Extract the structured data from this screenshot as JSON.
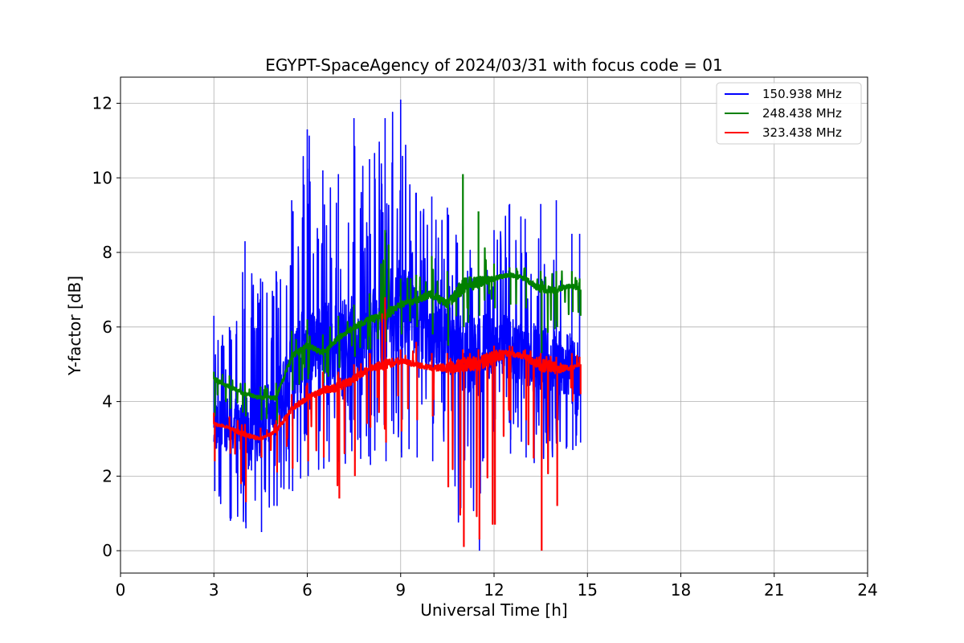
{
  "chart_data": {
    "type": "line",
    "title": "EGYPT-SpaceAgency of 2024/03/31 with focus code = 01",
    "xlabel": "Universal Time [h]",
    "ylabel": "Y-factor [dB]",
    "xlim": [
      0,
      24
    ],
    "ylim": [
      -0.6,
      12.7
    ],
    "xticks": [
      "0",
      "3",
      "6",
      "9",
      "12",
      "15",
      "18",
      "21",
      "24"
    ],
    "yticks": [
      "0",
      "2",
      "4",
      "6",
      "8",
      "10",
      "12"
    ],
    "grid": true,
    "legend_position": "top-right",
    "series": [
      {
        "name": "150.938 MHz",
        "color": "#0000ff",
        "x": [
          3.0,
          3.5,
          4.0,
          4.5,
          5.0,
          5.5,
          6.0,
          6.5,
          7.0,
          7.5,
          8.0,
          8.5,
          9.0,
          9.5,
          10.0,
          10.5,
          11.0,
          11.5,
          12.0,
          12.5,
          13.0,
          13.5,
          14.0,
          14.5,
          14.75
        ],
        "mid": [
          3.3,
          3.4,
          3.2,
          3.3,
          3.8,
          4.8,
          5.4,
          5.6,
          5.5,
          5.7,
          6.0,
          6.3,
          6.5,
          6.2,
          5.8,
          5.6,
          5.3,
          5.3,
          5.4,
          5.5,
          5.3,
          5.1,
          5.0,
          5.0,
          4.8
        ],
        "min": [
          1.6,
          0.8,
          0.6,
          0.5,
          1.2,
          1.6,
          2.0,
          2.2,
          2.1,
          2.4,
          2.3,
          2.4,
          2.5,
          2.5,
          2.4,
          2.2,
          0.1,
          0.0,
          2.5,
          2.6,
          2.5,
          2.2,
          2.3,
          2.7,
          2.9
        ],
        "max": [
          6.3,
          6.0,
          8.3,
          7.3,
          7.5,
          9.4,
          11.3,
          10.2,
          10.1,
          11.6,
          10.5,
          11.6,
          12.1,
          9.6,
          9.5,
          9.2,
          8.7,
          8.6,
          8.6,
          9.3,
          8.9,
          9.3,
          9.4,
          8.5,
          8.5
        ]
      },
      {
        "name": "248.438 MHz",
        "color": "#008000",
        "x": [
          3.0,
          3.5,
          4.0,
          4.5,
          5.0,
          5.5,
          6.0,
          6.5,
          7.0,
          7.5,
          8.0,
          8.5,
          9.0,
          9.5,
          10.0,
          10.5,
          11.0,
          11.5,
          12.0,
          12.5,
          13.0,
          13.5,
          14.0,
          14.5,
          14.75
        ],
        "mid": [
          4.6,
          4.4,
          4.2,
          4.1,
          4.1,
          5.2,
          5.5,
          5.3,
          5.7,
          6.0,
          6.2,
          6.3,
          6.6,
          6.7,
          6.9,
          6.6,
          7.1,
          7.2,
          7.3,
          7.4,
          7.3,
          7.0,
          7.0,
          7.1,
          7.0
        ],
        "min": [
          3.6,
          3.8,
          3.6,
          3.5,
          3.4,
          4.3,
          4.6,
          4.5,
          4.9,
          5.2,
          5.4,
          5.6,
          5.8,
          6.0,
          5.8,
          5.5,
          6.0,
          6.3,
          6.5,
          6.6,
          6.5,
          5.3,
          6.0,
          6.4,
          6.3
        ],
        "max": [
          4.8,
          4.7,
          4.5,
          4.4,
          4.5,
          5.9,
          6.2,
          5.8,
          6.3,
          6.6,
          6.9,
          8.6,
          7.3,
          7.4,
          7.9,
          7.5,
          10.1,
          9.1,
          7.7,
          7.6,
          7.6,
          7.5,
          7.5,
          7.5,
          7.3
        ]
      },
      {
        "name": "323.438 MHz",
        "color": "#ff0000",
        "x": [
          3.0,
          3.5,
          4.0,
          4.5,
          5.0,
          5.5,
          6.0,
          6.5,
          7.0,
          7.5,
          8.0,
          8.5,
          9.0,
          9.5,
          10.0,
          10.5,
          11.0,
          11.5,
          12.0,
          12.5,
          13.0,
          13.5,
          14.0,
          14.5,
          14.75
        ],
        "mid": [
          3.4,
          3.3,
          3.1,
          3.0,
          3.2,
          3.8,
          4.1,
          4.3,
          4.4,
          4.6,
          4.9,
          5.0,
          5.1,
          5.0,
          4.9,
          4.9,
          5.0,
          5.0,
          5.2,
          5.3,
          5.2,
          5.0,
          4.9,
          4.9,
          5.0
        ],
        "min": [
          2.4,
          2.6,
          1.3,
          2.5,
          2.1,
          2.2,
          2.4,
          2.5,
          1.4,
          2.0,
          3.3,
          2.9,
          3.2,
          3.5,
          3.6,
          1.7,
          0.1,
          0.3,
          0.7,
          3.5,
          3.5,
          0.0,
          1.2,
          4.0,
          4.2
        ],
        "max": [
          3.7,
          3.6,
          3.4,
          3.3,
          3.5,
          4.2,
          4.5,
          4.8,
          4.8,
          5.0,
          5.3,
          6.8,
          5.4,
          5.6,
          5.3,
          5.3,
          5.4,
          5.4,
          5.5,
          5.5,
          5.4,
          5.3,
          5.2,
          5.3,
          5.2
        ]
      }
    ]
  }
}
